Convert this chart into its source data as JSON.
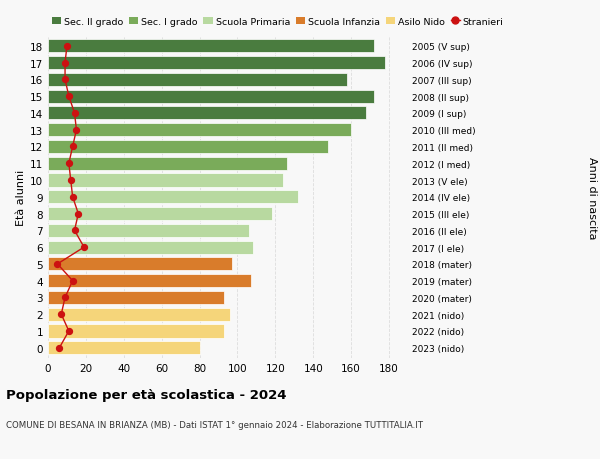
{
  "ages": [
    18,
    17,
    16,
    15,
    14,
    13,
    12,
    11,
    10,
    9,
    8,
    7,
    6,
    5,
    4,
    3,
    2,
    1,
    0
  ],
  "values": [
    172,
    178,
    158,
    172,
    168,
    160,
    148,
    126,
    124,
    132,
    118,
    106,
    108,
    97,
    107,
    93,
    96,
    93,
    80
  ],
  "stranieri": [
    10,
    9,
    9,
    11,
    14,
    15,
    13,
    11,
    12,
    13,
    16,
    14,
    19,
    5,
    13,
    9,
    7,
    11,
    6
  ],
  "right_labels": [
    "2005 (V sup)",
    "2006 (IV sup)",
    "2007 (III sup)",
    "2008 (II sup)",
    "2009 (I sup)",
    "2010 (III med)",
    "2011 (II med)",
    "2012 (I med)",
    "2013 (V ele)",
    "2014 (IV ele)",
    "2015 (III ele)",
    "2016 (II ele)",
    "2017 (I ele)",
    "2018 (mater)",
    "2019 (mater)",
    "2020 (mater)",
    "2021 (nido)",
    "2022 (nido)",
    "2023 (nido)"
  ],
  "bar_colors": [
    "#4a7c3f",
    "#4a7c3f",
    "#4a7c3f",
    "#4a7c3f",
    "#4a7c3f",
    "#7aab5a",
    "#7aab5a",
    "#7aab5a",
    "#b8d9a0",
    "#b8d9a0",
    "#b8d9a0",
    "#b8d9a0",
    "#b8d9a0",
    "#d97c2b",
    "#d97c2b",
    "#d97c2b",
    "#f5d57a",
    "#f5d57a",
    "#f5d57a"
  ],
  "legend_labels": [
    "Sec. II grado",
    "Sec. I grado",
    "Scuola Primaria",
    "Scuola Infanzia",
    "Asilo Nido",
    "Stranieri"
  ],
  "legend_colors": [
    "#4a7c3f",
    "#7aab5a",
    "#b8d9a0",
    "#d97c2b",
    "#f5d57a",
    "#cc1111"
  ],
  "ylabel_left": "Età alunni",
  "ylabel_right": "Anni di nascita",
  "title1": "Popolazione per età scolastica - 2024",
  "title2": "COMUNE DI BESANA IN BRIANZA (MB) - Dati ISTAT 1° gennaio 2024 - Elaborazione TUTTITALIA.IT",
  "xlim": [
    0,
    190
  ],
  "background_color": "#f8f8f8",
  "grid_color": "#dddddd",
  "stranieri_color": "#cc1111",
  "bar_height": 0.78
}
